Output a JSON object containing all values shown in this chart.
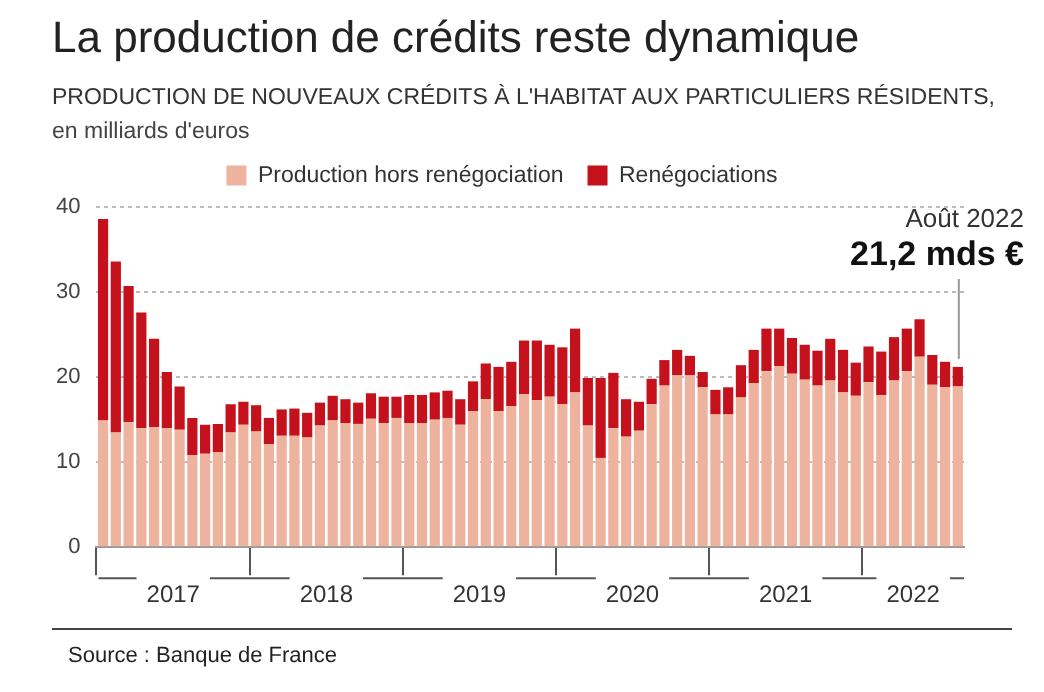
{
  "chart_data": {
    "type": "bar",
    "title": "La production de crédits reste dynamique",
    "subtitle": "PRODUCTION DE NOUVEAUX CRÉDITS À L'HABITAT AUX PARTICULIERS RÉSIDENTS,",
    "ylabel": "en milliards d'euros",
    "x": [
      "2017-01",
      "2017-02",
      "2017-03",
      "2017-04",
      "2017-05",
      "2017-06",
      "2017-07",
      "2017-08",
      "2017-09",
      "2017-10",
      "2017-11",
      "2017-12",
      "2018-01",
      "2018-02",
      "2018-03",
      "2018-04",
      "2018-05",
      "2018-06",
      "2018-07",
      "2018-08",
      "2018-09",
      "2018-10",
      "2018-11",
      "2018-12",
      "2019-01",
      "2019-02",
      "2019-03",
      "2019-04",
      "2019-05",
      "2019-06",
      "2019-07",
      "2019-08",
      "2019-09",
      "2019-10",
      "2019-11",
      "2019-12",
      "2020-01",
      "2020-02",
      "2020-03",
      "2020-04",
      "2020-05",
      "2020-06",
      "2020-07",
      "2020-08",
      "2020-09",
      "2020-10",
      "2020-11",
      "2020-12",
      "2021-01",
      "2021-02",
      "2021-03",
      "2021-04",
      "2021-05",
      "2021-06",
      "2021-07",
      "2021-08",
      "2021-09",
      "2021-10",
      "2021-11",
      "2021-12",
      "2022-01",
      "2022-02",
      "2022-03",
      "2022-04",
      "2022-05",
      "2022-06",
      "2022-07",
      "2022-08"
    ],
    "stacked": true,
    "series": [
      {
        "name": "Production hors renégociation",
        "color": "#edb39e",
        "values": [
          14.9,
          13.5,
          14.7,
          14.0,
          14.1,
          14.0,
          13.8,
          10.8,
          11.0,
          11.2,
          13.5,
          14.4,
          13.6,
          12.1,
          13.1,
          13.1,
          12.9,
          14.3,
          14.9,
          14.6,
          14.5,
          15.1,
          14.6,
          15.2,
          14.6,
          14.6,
          15.0,
          15.2,
          14.4,
          16.0,
          17.4,
          16.0,
          16.6,
          18.0,
          17.3,
          17.7,
          16.8,
          18.2,
          14.3,
          10.5,
          14.0,
          13.0,
          13.7,
          16.8,
          19.0,
          20.2,
          20.2,
          18.8,
          15.6,
          15.6,
          17.6,
          19.3,
          20.7,
          21.3,
          20.4,
          19.7,
          19.0,
          19.6,
          18.2,
          17.8,
          19.4,
          17.9,
          19.6,
          20.7,
          22.4,
          19.1,
          18.8,
          18.9
        ]
      },
      {
        "name": "Renégociations",
        "color": "#c4111b",
        "values": [
          23.7,
          20.1,
          16.0,
          13.6,
          10.4,
          6.6,
          5.1,
          4.4,
          3.4,
          3.3,
          3.3,
          2.7,
          3.1,
          3.1,
          3.1,
          3.2,
          2.9,
          2.7,
          2.9,
          2.8,
          2.5,
          3.0,
          3.1,
          2.5,
          3.3,
          3.3,
          3.2,
          3.2,
          3.0,
          3.5,
          4.2,
          5.2,
          5.2,
          6.3,
          7.0,
          6.1,
          6.7,
          7.5,
          5.6,
          9.4,
          6.5,
          4.4,
          3.4,
          3.0,
          3.0,
          3.0,
          2.3,
          1.8,
          2.9,
          3.2,
          3.8,
          3.9,
          5.0,
          4.4,
          4.2,
          4.1,
          4.1,
          4.9,
          5.0,
          3.9,
          4.2,
          5.1,
          5.1,
          5.0,
          4.4,
          3.5,
          3.0,
          2.3
        ]
      }
    ],
    "xlim": [
      "2016-12-16",
      "2022-08-16"
    ],
    "xticks": [
      {
        "value": "2016-12-16",
        "label": null
      },
      {
        "value": "2017-06-16",
        "label": "2017"
      },
      {
        "value": "2017-12-16",
        "label": null
      },
      {
        "value": "2018-06-16",
        "label": "2018"
      },
      {
        "value": "2018-12-16",
        "label": null
      },
      {
        "value": "2019-06-16",
        "label": "2019"
      },
      {
        "value": "2019-12-16",
        "label": null
      },
      {
        "value": "2020-06-16",
        "label": "2020"
      },
      {
        "value": "2020-12-16",
        "label": null
      },
      {
        "value": "2021-06-16",
        "label": "2021"
      },
      {
        "value": "2021-12-16",
        "label": null
      },
      {
        "value": "2022-04-16",
        "label": "2022"
      }
    ],
    "ylim": [
      0,
      40
    ],
    "yticks": [
      0,
      10,
      20,
      30,
      40
    ],
    "grid": "y",
    "legend": "top",
    "annotations": [
      "Août 2022",
      {
        "text": "21,2 mds €",
        "x": "2022-08",
        "y": 21.2
      },
      "Source : Banque de France"
    ]
  }
}
